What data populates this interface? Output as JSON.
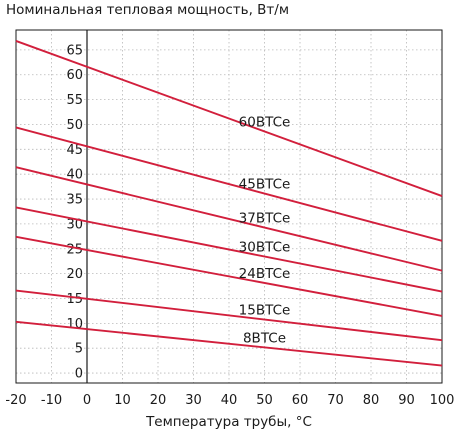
{
  "chart_data": {
    "type": "line",
    "title": "Номинальная тепловая мощность, Вт/м",
    "xlabel": "Температура трубы, °С",
    "ylabel": "",
    "xlim": [
      -20,
      100
    ],
    "ylim": [
      -2,
      69
    ],
    "x_ticks": [
      -20,
      -10,
      0,
      10,
      20,
      30,
      40,
      50,
      60,
      70,
      80,
      90,
      100
    ],
    "y_ticks": [
      0,
      5,
      10,
      15,
      20,
      25,
      30,
      35,
      40,
      45,
      50,
      55,
      60,
      65
    ],
    "grid": true,
    "line_color": "#d21f3c",
    "series": [
      {
        "name": "60BTCe",
        "x": [
          -20,
          100
        ],
        "y": [
          66.8,
          35.6
        ]
      },
      {
        "name": "45BTCe",
        "x": [
          -20,
          100
        ],
        "y": [
          49.4,
          26.6
        ]
      },
      {
        "name": "37BTCe",
        "x": [
          -20,
          100
        ],
        "y": [
          41.4,
          20.6
        ]
      },
      {
        "name": "30BTCe",
        "x": [
          -20,
          100
        ],
        "y": [
          33.3,
          16.4
        ]
      },
      {
        "name": "24BTCe",
        "x": [
          -20,
          100
        ],
        "y": [
          27.4,
          11.5
        ]
      },
      {
        "name": "15BTCe",
        "x": [
          -20,
          100
        ],
        "y": [
          16.6,
          6.6
        ]
      },
      {
        "name": "8BTCe",
        "x": [
          -20,
          100
        ],
        "y": [
          10.3,
          1.5
        ]
      }
    ]
  }
}
